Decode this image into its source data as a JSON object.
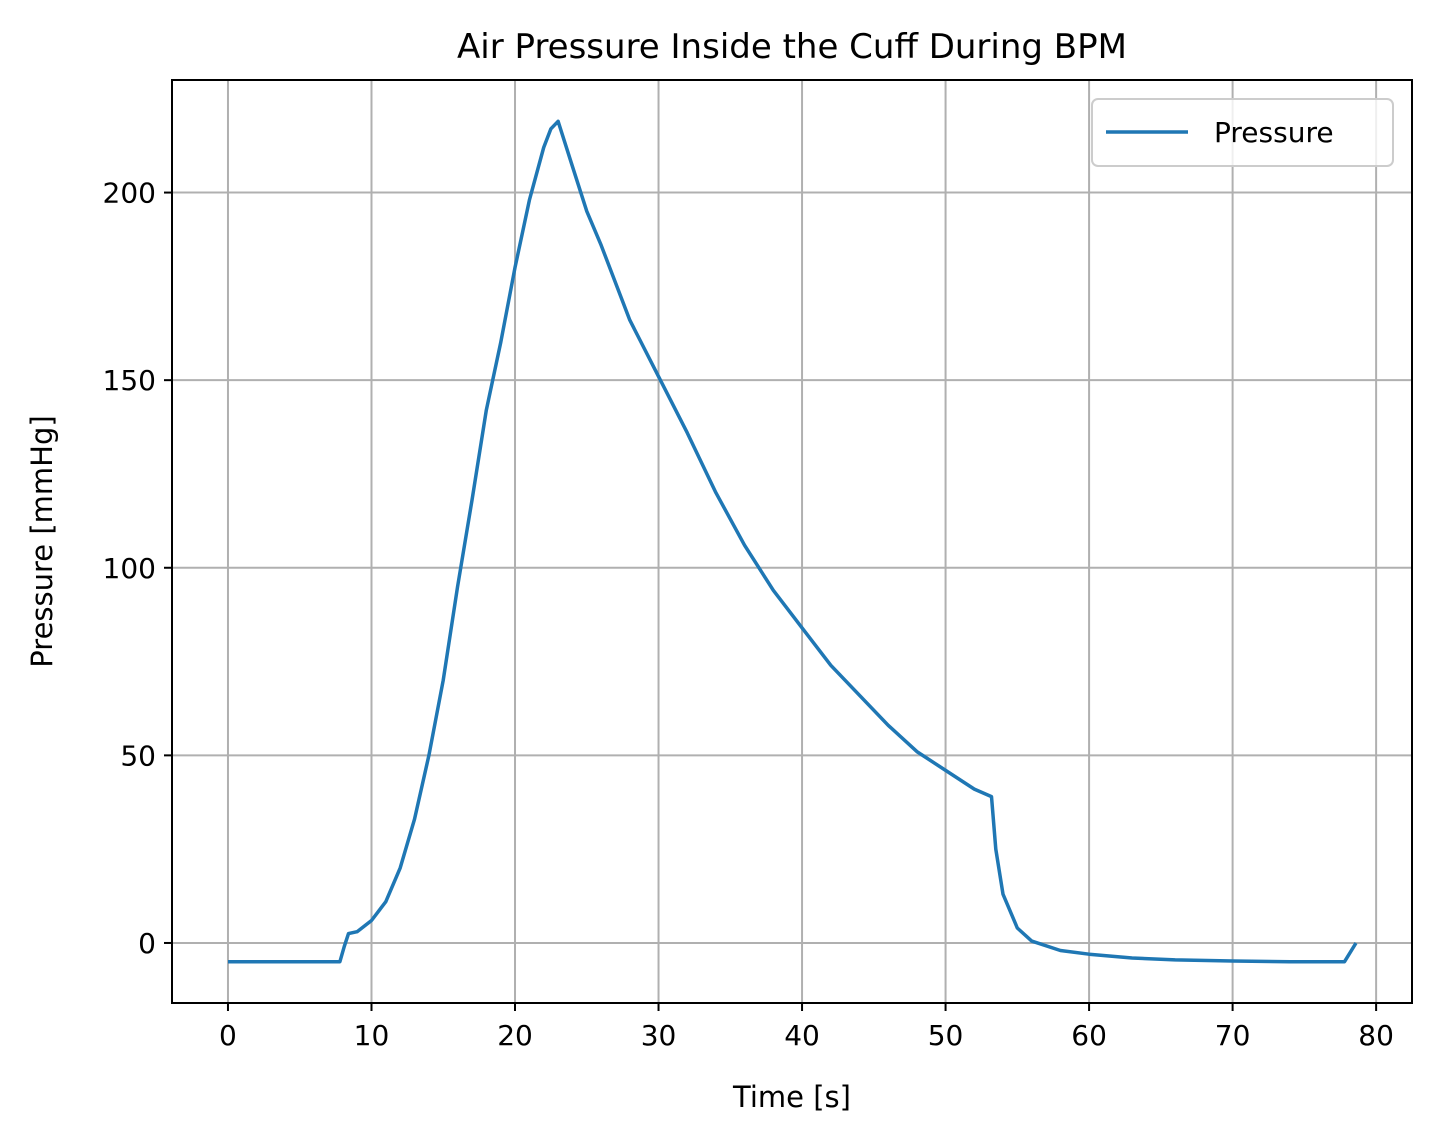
{
  "chart_data": {
    "type": "line",
    "title": "Air Pressure Inside the Cuff During BPM",
    "xlabel": "Time [s]",
    "ylabel": "Pressure [mmHg]",
    "xlim": [
      -3.9,
      82.5
    ],
    "ylim": [
      -16,
      230
    ],
    "xticks": [
      0,
      10,
      20,
      30,
      40,
      50,
      60,
      70,
      80
    ],
    "yticks": [
      0,
      50,
      100,
      150,
      200
    ],
    "grid": true,
    "legend_position": "top-right",
    "series": [
      {
        "name": "Pressure",
        "color": "#1f77b4",
        "x": [
          0,
          7.8,
          8.1,
          8.4,
          9.0,
          10.0,
          11.0,
          12.0,
          13.0,
          14.0,
          15.0,
          16.0,
          17.0,
          18.0,
          19.0,
          20.0,
          21.0,
          22.0,
          22.5,
          23.0,
          24.0,
          25.0,
          26.0,
          28.0,
          30.0,
          32.0,
          34.0,
          36.0,
          38.0,
          40.0,
          42.0,
          44.0,
          46.0,
          48.0,
          50.0,
          52.0,
          53.2,
          53.5,
          54.0,
          55.0,
          56.0,
          58.0,
          60.0,
          63.0,
          66.0,
          70.0,
          74.0,
          77.8,
          78.6
        ],
        "y": [
          -5,
          -5,
          -1,
          2.5,
          3,
          6,
          11,
          20,
          33,
          50,
          70,
          95,
          118,
          142,
          160,
          180,
          198,
          212,
          217,
          219,
          207,
          195,
          186,
          166,
          151,
          136,
          120,
          106,
          94,
          84,
          74,
          66,
          58,
          51,
          46,
          41,
          39,
          25,
          13,
          4,
          0.5,
          -2,
          -3,
          -4,
          -4.5,
          -4.8,
          -5,
          -5,
          0
        ]
      }
    ]
  }
}
